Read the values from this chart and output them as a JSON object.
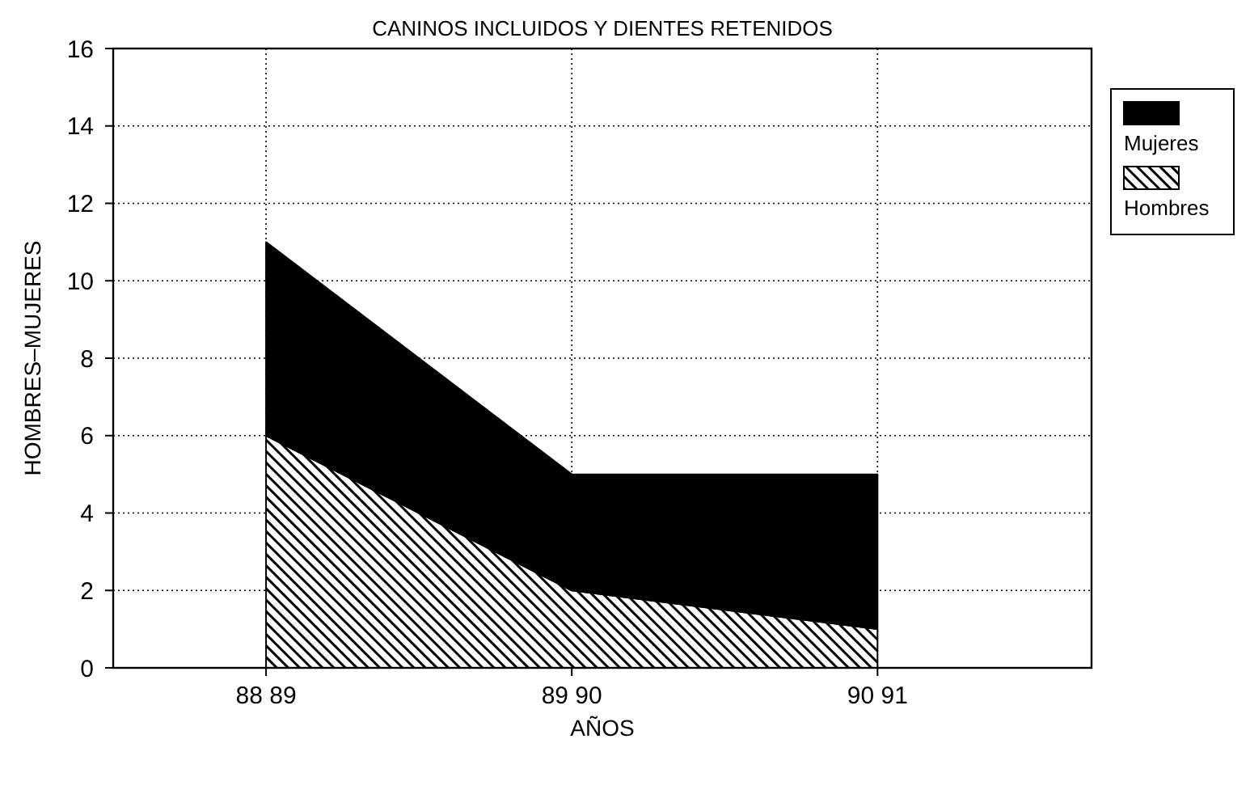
{
  "chart_data": {
    "type": "area",
    "title": "CANINOS INCLUIDOS Y DIENTES RETENIDOS",
    "xlabel": "AÑOS",
    "ylabel": "HOMBRES–MUJERES",
    "categories": [
      "88 89",
      "89 90",
      "90 91"
    ],
    "stacked": true,
    "series": [
      {
        "name": "Hombres",
        "color": "#000000",
        "values": [
          6,
          2,
          1
        ]
      },
      {
        "name": "Mujeres",
        "color": "#000000",
        "values": [
          5,
          3,
          4
        ]
      }
    ],
    "ylim": [
      0,
      16
    ],
    "yticks": [
      0,
      2,
      4,
      6,
      8,
      10,
      12,
      14,
      16
    ],
    "grid": true,
    "legend": "right"
  }
}
